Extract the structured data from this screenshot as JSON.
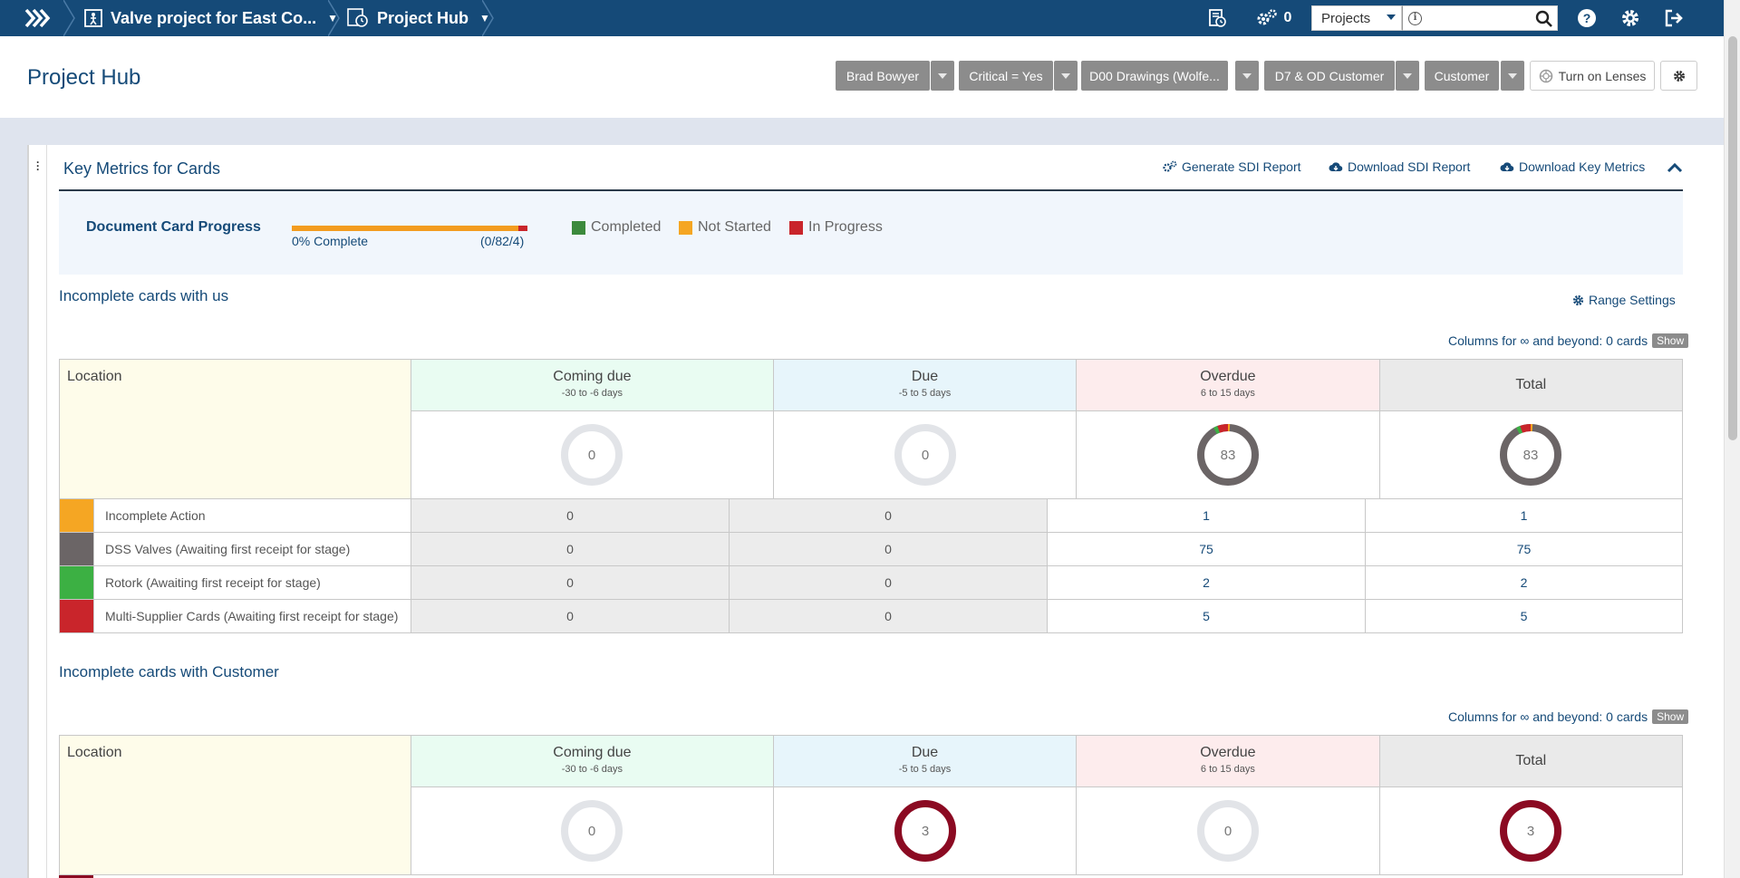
{
  "topbar": {
    "project_crumb": "Valve project for East Co...",
    "hub_crumb": "Project Hub",
    "task_count": "0",
    "search_scope": "Projects",
    "search_placeholder": ""
  },
  "header": {
    "title": "Project Hub",
    "filters": [
      "Brad Bowyer",
      "Critical = Yes",
      "D00 Drawings (Wolfe...",
      "D7 & OD Customer",
      "Customer"
    ],
    "lens_button": "Turn on Lenses"
  },
  "metrics": {
    "title": "Key Metrics for Cards",
    "actions": [
      "Generate SDI Report",
      "Download SDI Report",
      "Download Key Metrics"
    ],
    "progress_label": "Document Card Progress",
    "progress_pct_text": "0% Complete",
    "progress_fraction": "(0/82/4)",
    "progress_complete_fraction": 0.0,
    "legend": [
      {
        "label": "Completed",
        "color": "#3c8a3c"
      },
      {
        "label": "Not Started",
        "color": "#f5a623"
      },
      {
        "label": "In Progress",
        "color": "#c9252b"
      }
    ]
  },
  "range_settings": "Range Settings",
  "columns_note": "Columns for ∞ and beyond: 0 cards",
  "show_label": "Show",
  "table_headers": {
    "location": "Location",
    "coming_due": "Coming due",
    "coming_due_range": "-30 to -6 days",
    "due": "Due",
    "due_range": "-5 to 5 days",
    "overdue": "Overdue",
    "overdue_range": "6 to 15 days",
    "total": "Total"
  },
  "section_us": {
    "title": "Incomplete cards with us",
    "donuts": [
      "0",
      "0",
      "83",
      "83"
    ],
    "rows": [
      {
        "color": "#f5a623",
        "name": "Incomplete Action",
        "coming": "0",
        "due": "0",
        "overdue": "1",
        "total": "1"
      },
      {
        "color": "#6b6566",
        "name": "DSS Valves (Awaiting first receipt for stage)",
        "coming": "0",
        "due": "0",
        "overdue": "75",
        "total": "75"
      },
      {
        "color": "#3cb043",
        "name": "Rotork (Awaiting first receipt for stage)",
        "coming": "0",
        "due": "0",
        "overdue": "2",
        "total": "2"
      },
      {
        "color": "#c9252b",
        "name": "Multi-Supplier Cards (Awaiting first receipt for stage)",
        "coming": "0",
        "due": "0",
        "overdue": "5",
        "total": "5"
      }
    ]
  },
  "section_customer": {
    "title": "Incomplete cards with Customer",
    "donuts": [
      "0",
      "3",
      "0",
      "3"
    ]
  }
}
